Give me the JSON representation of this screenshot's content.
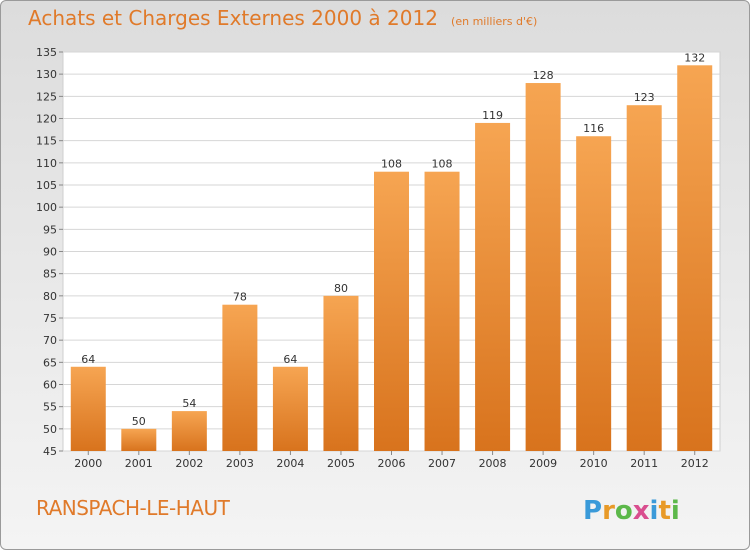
{
  "header": {
    "title": "Achats et Charges Externes 2000 à 2012",
    "subtitle": "(en milliers d'€)"
  },
  "footer": {
    "commune": "RANSPACH-LE-HAUT",
    "logo_text": "Proxiti"
  },
  "colors": {
    "bar_light": "#f6a552",
    "bar_dark": "#d8731d",
    "accent": "#e07a2a"
  },
  "chart_data": {
    "type": "bar",
    "title": "Achats et Charges Externes 2000 à 2012",
    "subtitle": "(en milliers d'€)",
    "categories": [
      "2000",
      "2001",
      "2002",
      "2003",
      "2004",
      "2005",
      "2006",
      "2007",
      "2008",
      "2009",
      "2010",
      "2011",
      "2012"
    ],
    "values": [
      64,
      50,
      54,
      78,
      64,
      80,
      108,
      108,
      119,
      128,
      116,
      123,
      132
    ],
    "ylim": [
      45,
      135
    ],
    "yticks": [
      45,
      50,
      55,
      60,
      65,
      70,
      75,
      80,
      85,
      90,
      95,
      100,
      105,
      110,
      115,
      120,
      125,
      130,
      135
    ],
    "grid": true
  }
}
